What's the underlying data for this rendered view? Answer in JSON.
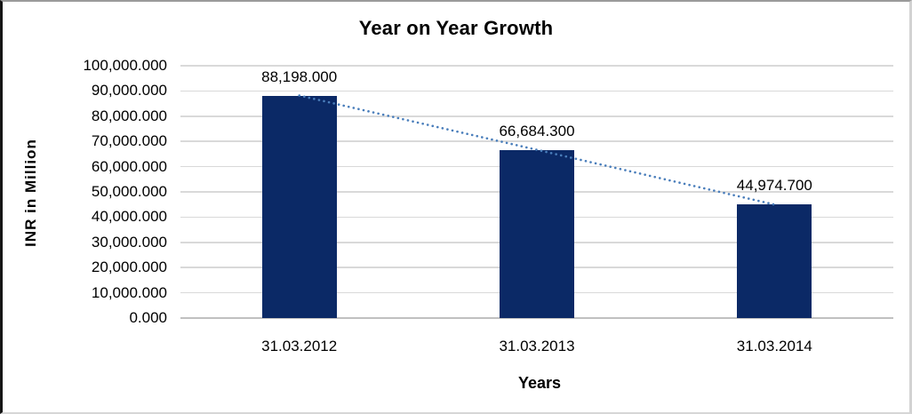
{
  "chart_data": {
    "type": "bar",
    "title": "Year on Year Growth",
    "xlabel": "Years",
    "ylabel": "INR in Million",
    "categories": [
      "31.03.2012",
      "31.03.2013",
      "31.03.2014"
    ],
    "values": [
      88198.0,
      66684.3,
      44974.7
    ],
    "value_labels": [
      "88,198.000",
      "66,684.300",
      "44,974.700"
    ],
    "y_tick_labels": [
      "100,000.000",
      "90,000.000",
      "80,000.000",
      "70,000.000",
      "60,000.000",
      "50,000.000",
      "40,000.000",
      "30,000.000",
      "20,000.000",
      "10,000.000",
      "0.000"
    ],
    "ylim": [
      0,
      100000
    ],
    "grid": true,
    "legend": "none",
    "trendline": "linear-dotted",
    "colors": {
      "bar": "#0b2966",
      "trendline": "#4a7ebb",
      "gridline": "#d9d9d9",
      "axis_line": "#c0c0c0",
      "text": "#000000"
    }
  }
}
